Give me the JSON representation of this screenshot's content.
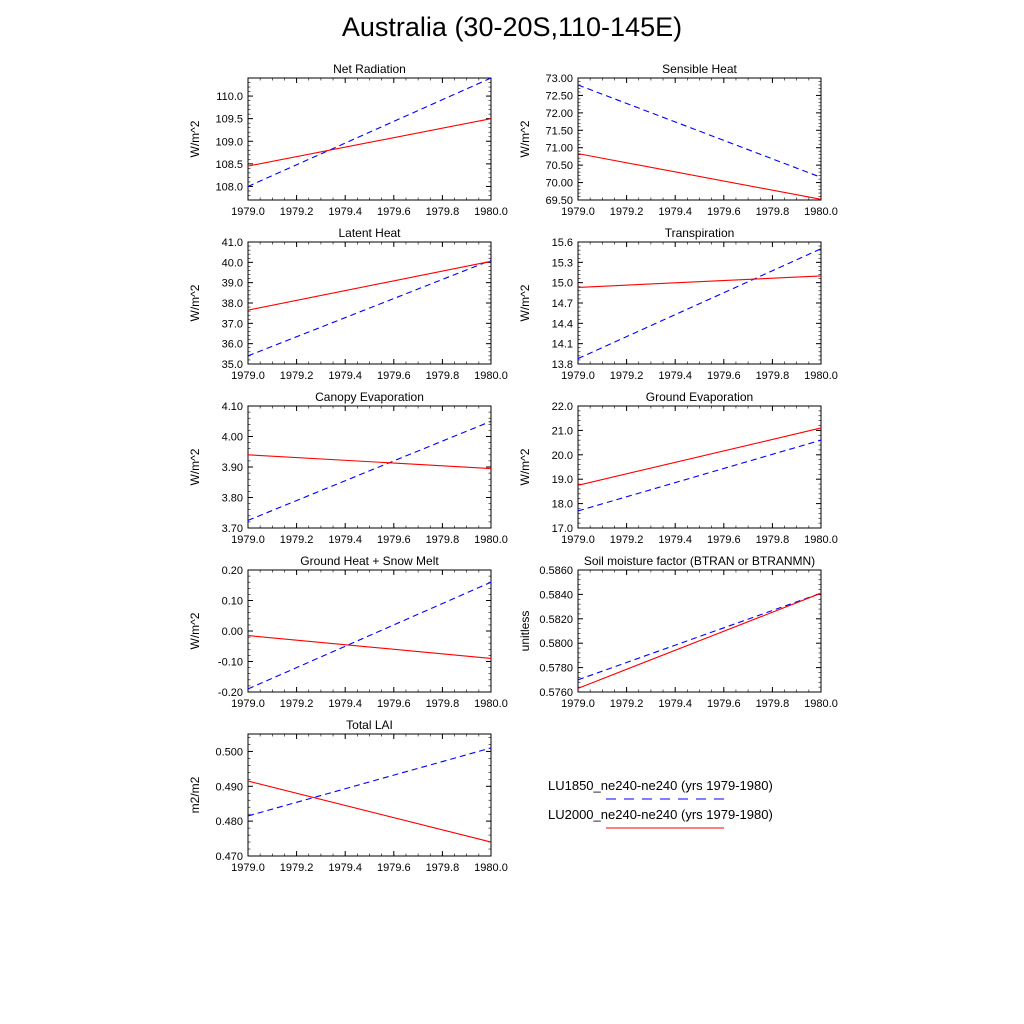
{
  "title": "Australia (30-20S,110-145E)",
  "colors": {
    "series1": "#0000ff",
    "series2": "#ff0000",
    "axis": "#000000"
  },
  "legend": {
    "items": [
      {
        "label": "LU1850_ne240-ne240 (yrs 1979-1980)",
        "color": "#0000ff",
        "dash": true
      },
      {
        "label": "LU2000_ne240-ne240 (yrs 1979-1980)",
        "color": "#ff0000",
        "dash": false
      }
    ]
  },
  "chart_data": [
    {
      "type": "line",
      "title": "Net Radiation",
      "ylabel": "W/m^2",
      "x": [
        1979.0,
        1980.0
      ],
      "xlim": [
        1979.0,
        1980.0
      ],
      "xticks": [
        "1979.0",
        "1979.2",
        "1979.4",
        "1979.6",
        "1979.8",
        "1980.0"
      ],
      "ylim": [
        107.7,
        110.4
      ],
      "yticks": [
        "108.0",
        "108.5",
        "109.0",
        "109.5",
        "110.0"
      ],
      "series": [
        {
          "name": "LU1850_ne240-ne240 (yrs 1979-1980)",
          "values": [
            108.0,
            110.4
          ]
        },
        {
          "name": "LU2000_ne240-ne240 (yrs 1979-1980)",
          "values": [
            108.45,
            109.5
          ]
        }
      ]
    },
    {
      "type": "line",
      "title": "Sensible Heat",
      "ylabel": "W/m^2",
      "x": [
        1979.0,
        1980.0
      ],
      "xlim": [
        1979.0,
        1980.0
      ],
      "xticks": [
        "1979.0",
        "1979.2",
        "1979.4",
        "1979.6",
        "1979.8",
        "1980.0"
      ],
      "ylim": [
        69.5,
        73.0
      ],
      "yticks": [
        "69.50",
        "70.00",
        "70.50",
        "71.00",
        "71.50",
        "72.00",
        "72.50",
        "73.00"
      ],
      "series": [
        {
          "name": "LU1850_ne240-ne240 (yrs 1979-1980)",
          "values": [
            72.8,
            70.15
          ]
        },
        {
          "name": "LU2000_ne240-ne240 (yrs 1979-1980)",
          "values": [
            70.83,
            69.52
          ]
        }
      ]
    },
    {
      "type": "line",
      "title": "Latent Heat",
      "ylabel": "W/m^2",
      "x": [
        1979.0,
        1980.0
      ],
      "xlim": [
        1979.0,
        1980.0
      ],
      "xticks": [
        "1979.0",
        "1979.2",
        "1979.4",
        "1979.6",
        "1979.8",
        "1980.0"
      ],
      "ylim": [
        35.0,
        41.0
      ],
      "yticks": [
        "35.0",
        "36.0",
        "37.0",
        "38.0",
        "39.0",
        "40.0",
        "41.0"
      ],
      "series": [
        {
          "name": "LU1850_ne240-ne240 (yrs 1979-1980)",
          "values": [
            35.4,
            40.1
          ]
        },
        {
          "name": "LU2000_ne240-ne240 (yrs 1979-1980)",
          "values": [
            37.65,
            40.05
          ]
        }
      ]
    },
    {
      "type": "line",
      "title": "Transpiration",
      "ylabel": "W/m^2",
      "x": [
        1979.0,
        1980.0
      ],
      "xlim": [
        1979.0,
        1980.0
      ],
      "xticks": [
        "1979.0",
        "1979.2",
        "1979.4",
        "1979.6",
        "1979.8",
        "1980.0"
      ],
      "ylim": [
        13.8,
        15.6
      ],
      "yticks": [
        "13.8",
        "14.1",
        "14.4",
        "14.7",
        "15.0",
        "15.3",
        "15.6"
      ],
      "series": [
        {
          "name": "LU1850_ne240-ne240 (yrs 1979-1980)",
          "values": [
            13.88,
            15.5
          ]
        },
        {
          "name": "LU2000_ne240-ne240 (yrs 1979-1980)",
          "values": [
            14.93,
            15.1
          ]
        }
      ]
    },
    {
      "type": "line",
      "title": "Canopy Evaporation",
      "ylabel": "W/m^2",
      "x": [
        1979.0,
        1980.0
      ],
      "xlim": [
        1979.0,
        1980.0
      ],
      "xticks": [
        "1979.0",
        "1979.2",
        "1979.4",
        "1979.6",
        "1979.8",
        "1980.0"
      ],
      "ylim": [
        3.7,
        4.1
      ],
      "yticks": [
        "3.70",
        "3.80",
        "3.90",
        "4.00",
        "4.10"
      ],
      "series": [
        {
          "name": "LU1850_ne240-ne240 (yrs 1979-1980)",
          "values": [
            3.725,
            4.05
          ]
        },
        {
          "name": "LU2000_ne240-ne240 (yrs 1979-1980)",
          "values": [
            3.94,
            3.895
          ]
        }
      ]
    },
    {
      "type": "line",
      "title": "Ground Evaporation",
      "ylabel": "W/m^2",
      "x": [
        1979.0,
        1980.0
      ],
      "xlim": [
        1979.0,
        1980.0
      ],
      "xticks": [
        "1979.0",
        "1979.2",
        "1979.4",
        "1979.6",
        "1979.8",
        "1980.0"
      ],
      "ylim": [
        17.0,
        22.0
      ],
      "yticks": [
        "17.0",
        "18.0",
        "19.0",
        "20.0",
        "21.0",
        "22.0"
      ],
      "series": [
        {
          "name": "LU1850_ne240-ne240 (yrs 1979-1980)",
          "values": [
            17.7,
            20.6
          ]
        },
        {
          "name": "LU2000_ne240-ne240 (yrs 1979-1980)",
          "values": [
            18.75,
            21.1
          ]
        }
      ]
    },
    {
      "type": "line",
      "title": "Ground Heat + Snow Melt",
      "ylabel": "W/m^2",
      "x": [
        1979.0,
        1980.0
      ],
      "xlim": [
        1979.0,
        1980.0
      ],
      "xticks": [
        "1979.0",
        "1979.2",
        "1979.4",
        "1979.6",
        "1979.8",
        "1980.0"
      ],
      "ylim": [
        -0.2,
        0.2
      ],
      "yticks": [
        "-0.20",
        "-0.10",
        "0.00",
        "0.10",
        "0.20"
      ],
      "series": [
        {
          "name": "LU1850_ne240-ne240 (yrs 1979-1980)",
          "values": [
            -0.19,
            0.16
          ]
        },
        {
          "name": "LU2000_ne240-ne240 (yrs 1979-1980)",
          "values": [
            -0.015,
            -0.09
          ]
        }
      ]
    },
    {
      "type": "line",
      "title": "Soil moisture factor (BTRAN or BTRANMN)",
      "ylabel": "unitless",
      "x": [
        1979.0,
        1980.0
      ],
      "xlim": [
        1979.0,
        1980.0
      ],
      "xticks": [
        "1979.0",
        "1979.2",
        "1979.4",
        "1979.6",
        "1979.8",
        "1980.0"
      ],
      "ylim": [
        0.576,
        0.586
      ],
      "yticks": [
        "0.5760",
        "0.5780",
        "0.5800",
        "0.5820",
        "0.5840",
        "0.5860"
      ],
      "series": [
        {
          "name": "LU1850_ne240-ne240 (yrs 1979-1980)",
          "values": [
            0.577,
            0.5841
          ]
        },
        {
          "name": "LU2000_ne240-ne240 (yrs 1979-1980)",
          "values": [
            0.5763,
            0.5841
          ]
        }
      ]
    },
    {
      "type": "line",
      "title": "Total LAI",
      "ylabel": "m2/m2",
      "x": [
        1979.0,
        1980.0
      ],
      "xlim": [
        1979.0,
        1980.0
      ],
      "xticks": [
        "1979.0",
        "1979.2",
        "1979.4",
        "1979.6",
        "1979.8",
        "1980.0"
      ],
      "ylim": [
        0.47,
        0.505
      ],
      "yticks": [
        "0.470",
        "0.480",
        "0.490",
        "0.500"
      ],
      "series": [
        {
          "name": "LU1850_ne240-ne240 (yrs 1979-1980)",
          "values": [
            0.4815,
            0.501
          ]
        },
        {
          "name": "LU2000_ne240-ne240 (yrs 1979-1980)",
          "values": [
            0.4915,
            0.474
          ]
        }
      ]
    }
  ]
}
